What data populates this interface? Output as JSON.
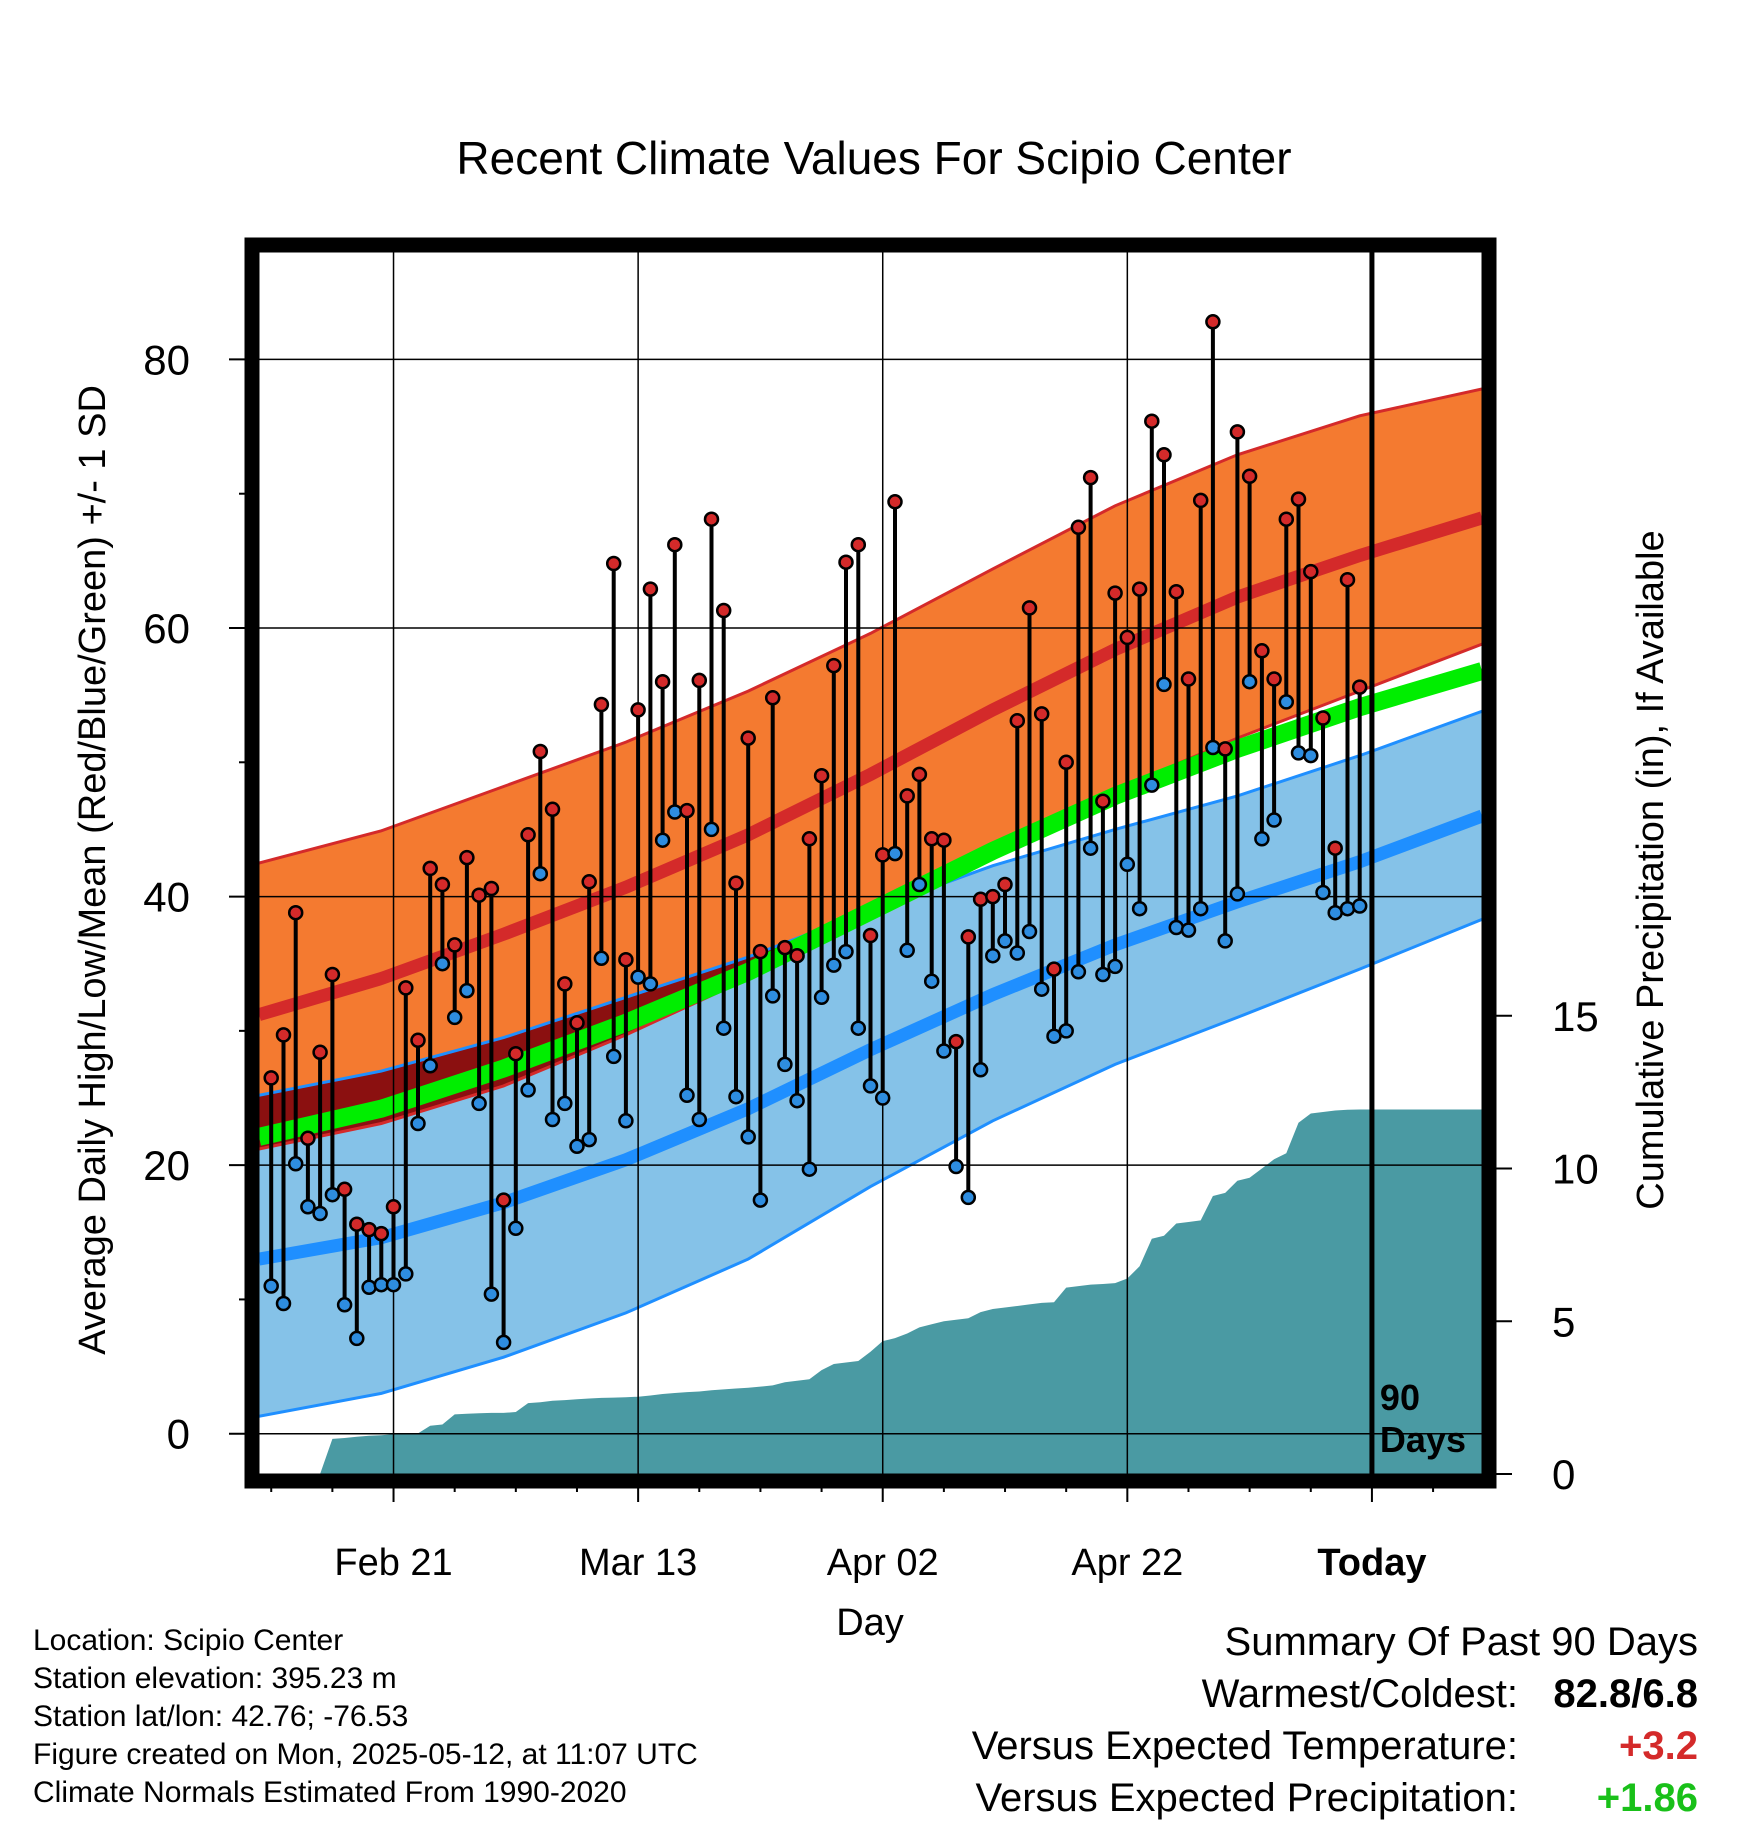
{
  "title": "Recent Climate Values For Scipio Center",
  "info": {
    "location": "Location: Scipio Center",
    "elevation": "Station elevation: 395.23 m",
    "latlon": "Station lat/lon: 42.76; -76.53",
    "created": "Figure created on Mon, 2025-05-12, at 11:07 UTC",
    "normals": "Climate Normals Estimated From 1990-2020"
  },
  "summary": {
    "heading": "Summary Of Past 90 Days",
    "warmest_label": "Warmest/Coldest:",
    "warmest_value": "82.8/6.8",
    "temp_label": "Versus Expected Temperature:",
    "temp_value": "+3.2",
    "precip_label": "Versus Expected Precipitation:",
    "precip_value": "+1.86"
  },
  "colors": {
    "high_band": "#f47a30",
    "high_mean": "#d42a2a",
    "low_band": "#85c2e8",
    "low_mean": "#1f8fff",
    "mean_temp": "#00ee00",
    "overlap_band": "#8b1010",
    "precip": "#4a9aa3",
    "high_dot": "#d42a2a",
    "low_dot": "#2e8de0"
  },
  "chart_data": {
    "type": "line",
    "title": "Recent Climate Values For Scipio Center",
    "xlabel": "Day",
    "ylabel": "Average Daily High/Low/Mean (Red/Blue/Green) +/- 1 SD",
    "y2label": "Cumulative Precipitation (in), If Available",
    "xlim": [
      -91,
      9
    ],
    "ylim": [
      -3,
      88
    ],
    "y2lim": [
      0,
      40
    ],
    "yticks": [
      0,
      20,
      40,
      60,
      80
    ],
    "y2ticks": [
      0,
      5,
      10,
      15
    ],
    "y2ticklabels": [
      "0",
      "5",
      "10",
      "15"
    ],
    "xticks": [
      {
        "x": -80,
        "label": "Feb 21"
      },
      {
        "x": -60,
        "label": "Mar 13"
      },
      {
        "x": -40,
        "label": "Apr 02"
      },
      {
        "x": -20,
        "label": "Apr 22"
      },
      {
        "x": 0,
        "label": "Today"
      }
    ],
    "today_label": [
      "90",
      "Days"
    ],
    "normals_x": [
      -91,
      -81,
      -71,
      -61,
      -51,
      -41,
      -31,
      -21,
      -11,
      -1,
      9
    ],
    "normal_high_mean": [
      31.2,
      33.9,
      37.2,
      40.7,
      44.6,
      49.1,
      53.9,
      58.4,
      62.3,
      65.4,
      68.2
    ],
    "normal_high_upper": [
      42.5,
      44.9,
      48.2,
      51.5,
      55.3,
      59.6,
      64.4,
      69.1,
      72.9,
      75.8,
      77.8
    ],
    "normal_high_lower": [
      21.2,
      23.1,
      25.9,
      29.7,
      33.9,
      38.5,
      43.3,
      47.9,
      51.8,
      55.3,
      58.8
    ],
    "normal_low_mean": [
      13.0,
      14.6,
      17.2,
      20.4,
      24.2,
      28.6,
      32.7,
      36.4,
      39.6,
      42.6,
      46.0
    ],
    "normal_low_upper": [
      25.2,
      27.0,
      29.5,
      32.5,
      35.5,
      39.0,
      42.3,
      45.0,
      47.5,
      50.5,
      53.8
    ],
    "normal_low_lower": [
      1.3,
      3.0,
      5.7,
      9.0,
      13.0,
      18.4,
      23.3,
      27.5,
      31.0,
      34.6,
      38.3
    ],
    "normal_mean": [
      22.1,
      24.2,
      27.2,
      30.6,
      34.4,
      38.9,
      43.4,
      47.5,
      51.0,
      54.1,
      56.8
    ],
    "daily_x": [
      -90,
      -89,
      -88,
      -87,
      -86,
      -85,
      -84,
      -83,
      -82,
      -81,
      -80,
      -79,
      -78,
      -77,
      -76,
      -75,
      -74,
      -73,
      -72,
      -71,
      -70,
      -69,
      -68,
      -67,
      -66,
      -65,
      -64,
      -63,
      -62,
      -61,
      -60,
      -59,
      -58,
      -57,
      -56,
      -55,
      -54,
      -53,
      -52,
      -51,
      -50,
      -49,
      -48,
      -47,
      -46,
      -45,
      -44,
      -43,
      -42,
      -41,
      -40,
      -39,
      -38,
      -37,
      -36,
      -35,
      -34,
      -33,
      -32,
      -31,
      -30,
      -29,
      -28,
      -27,
      -26,
      -25,
      -24,
      -23,
      -22,
      -21,
      -20,
      -19,
      -18,
      -17,
      -16,
      -15,
      -14,
      -13,
      -12,
      -11,
      -10,
      -9,
      -8,
      -7,
      -6,
      -5,
      -4,
      -3,
      -2,
      -1
    ],
    "daily_high": [
      26.5,
      29.7,
      38.8,
      22.0,
      28.4,
      34.2,
      18.2,
      15.6,
      15.2,
      14.9,
      16.9,
      33.2,
      29.3,
      42.1,
      40.9,
      36.4,
      42.9,
      40.1,
      40.6,
      17.4,
      28.3,
      44.6,
      50.8,
      46.5,
      33.5,
      30.6,
      41.1,
      54.3,
      64.8,
      35.3,
      53.9,
      62.9,
      56.0,
      66.2,
      46.4,
      56.1,
      68.1,
      61.3,
      41.0,
      51.8,
      35.9,
      54.8,
      36.2,
      35.6,
      44.3,
      49.0,
      57.2,
      64.9,
      66.2,
      37.1,
      43.1,
      69.4,
      47.5,
      49.1,
      44.3,
      44.2,
      29.2,
      37.0,
      39.8,
      40.0,
      40.9,
      53.1,
      61.5,
      53.6,
      34.6,
      50.0,
      67.5,
      71.2,
      47.1,
      62.6,
      59.3,
      62.9,
      75.4,
      72.9,
      62.7,
      56.2,
      69.5,
      82.8,
      51.0,
      74.6,
      71.3,
      58.3,
      56.2,
      68.1,
      69.6,
      64.2,
      53.3,
      43.6,
      63.6,
      55.6
    ],
    "daily_low": [
      11.0,
      9.7,
      20.1,
      16.9,
      16.4,
      17.8,
      9.6,
      7.1,
      10.9,
      11.1,
      11.1,
      11.9,
      23.1,
      27.4,
      35.0,
      31.0,
      33.0,
      24.6,
      10.4,
      6.8,
      15.3,
      25.6,
      41.7,
      23.4,
      24.6,
      21.4,
      21.9,
      35.4,
      28.1,
      23.3,
      34.0,
      33.5,
      44.2,
      46.3,
      25.2,
      23.4,
      45.0,
      30.2,
      25.1,
      22.1,
      17.4,
      32.6,
      27.5,
      24.8,
      19.7,
      32.5,
      34.9,
      35.9,
      30.2,
      25.9,
      25.0,
      43.2,
      36.0,
      40.9,
      33.7,
      28.5,
      19.9,
      17.6,
      27.1,
      35.6,
      36.7,
      35.8,
      37.4,
      33.1,
      29.6,
      30.0,
      34.4,
      43.6,
      34.2,
      34.8,
      42.4,
      39.1,
      48.3,
      55.8,
      37.7,
      37.5,
      39.1,
      51.1,
      36.7,
      40.2,
      56.0,
      44.3,
      45.7,
      54.5,
      50.7,
      50.5,
      40.3,
      38.8,
      39.1,
      39.3
    ],
    "precip_x": [
      -86,
      -85,
      -84,
      -83,
      -82,
      -81,
      -80,
      -79,
      -78,
      -77,
      -76,
      -75,
      -74,
      -73,
      -72,
      -71,
      -70,
      -69,
      -68,
      -67,
      -66,
      -65,
      -64,
      -63,
      -62,
      -61,
      -60,
      -59,
      -58,
      -57,
      -56,
      -55,
      -54,
      -53,
      -52,
      -51,
      -50,
      -49,
      -48,
      -47,
      -46,
      -45,
      -44,
      -43,
      -42,
      -41,
      -40,
      -39,
      -38,
      -37,
      -36,
      -35,
      -34,
      -33,
      -32,
      -31,
      -30,
      -29,
      -28,
      -27,
      -26,
      -25,
      -24,
      -23,
      -22,
      -21,
      -20,
      -19,
      -18,
      -17,
      -16,
      -15,
      -14,
      -13,
      -12,
      -11,
      -10,
      -9,
      -8,
      -7,
      -6,
      -5,
      -4,
      -3,
      -2,
      -1,
      0,
      9
    ],
    "precip_cum": [
      0.0,
      1.15,
      1.18,
      1.22,
      1.25,
      1.27,
      1.3,
      1.32,
      1.33,
      1.58,
      1.62,
      1.95,
      1.97,
      1.99,
      2.0,
      2.0,
      2.03,
      2.32,
      2.35,
      2.4,
      2.42,
      2.45,
      2.47,
      2.49,
      2.5,
      2.51,
      2.53,
      2.57,
      2.62,
      2.65,
      2.68,
      2.7,
      2.74,
      2.77,
      2.8,
      2.82,
      2.86,
      2.9,
      3.0,
      3.05,
      3.1,
      3.4,
      3.6,
      3.65,
      3.7,
      4.0,
      4.35,
      4.45,
      4.6,
      4.8,
      4.9,
      5.0,
      5.05,
      5.1,
      5.3,
      5.4,
      5.45,
      5.5,
      5.55,
      5.6,
      5.62,
      6.1,
      6.15,
      6.2,
      6.22,
      6.25,
      6.4,
      6.8,
      7.7,
      7.8,
      8.2,
      8.25,
      8.3,
      9.1,
      9.2,
      9.6,
      9.7,
      10.0,
      10.3,
      10.5,
      11.5,
      11.8,
      11.85,
      11.9,
      11.92,
      11.93,
      11.93,
      11.93
    ]
  }
}
